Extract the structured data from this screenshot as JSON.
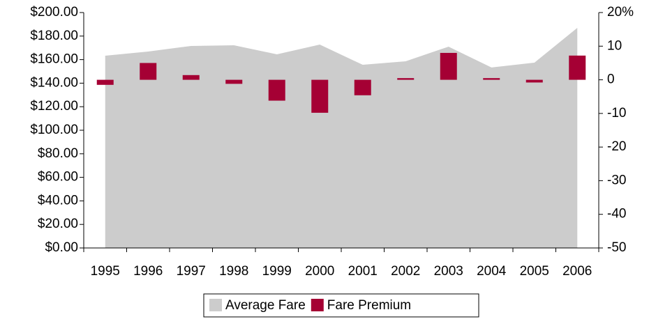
{
  "chart_data": {
    "type": "bar",
    "categories": [
      "1995",
      "1996",
      "1997",
      "1998",
      "1999",
      "2000",
      "2001",
      "2002",
      "2003",
      "2004",
      "2005",
      "2006"
    ],
    "series": [
      {
        "name": "Average Fare",
        "type": "area",
        "color": "#cccccc",
        "values": [
          163.3,
          166.9,
          171.6,
          172.2,
          164.5,
          172.8,
          155.6,
          158.6,
          171,
          153.3,
          157.4,
          187
        ]
      },
      {
        "name": "Fare Premium",
        "type": "bar",
        "axis": "y2",
        "color": "#a50034",
        "values": [
          -1.5,
          5,
          1.4,
          -1.2,
          -6.2,
          -9.8,
          -4.6,
          0.5,
          8,
          0.5,
          -0.8,
          7.2
        ]
      }
    ],
    "ylim": [
      0,
      200
    ],
    "yticks": [
      {
        "value": 0,
        "label": "$0.00"
      },
      {
        "value": 20,
        "label": "$20.00"
      },
      {
        "value": 40,
        "label": "$40.00"
      },
      {
        "value": 60,
        "label": "$60.00"
      },
      {
        "value": 80,
        "label": "$80.00"
      },
      {
        "value": 100,
        "label": "$100.00"
      },
      {
        "value": 120,
        "label": "$120.00"
      },
      {
        "value": 140,
        "label": "$140.00"
      },
      {
        "value": 160,
        "label": "$160.00"
      },
      {
        "value": 180,
        "label": "$180.00"
      },
      {
        "value": 200,
        "label": "$200.00"
      }
    ],
    "y2lim": [
      -50,
      20
    ],
    "y2ticks": [
      -50,
      -40,
      -30,
      -20,
      -10,
      0,
      10,
      {
        "value": 20,
        "label": "20%"
      }
    ],
    "grid": false,
    "legend": "bottom"
  }
}
